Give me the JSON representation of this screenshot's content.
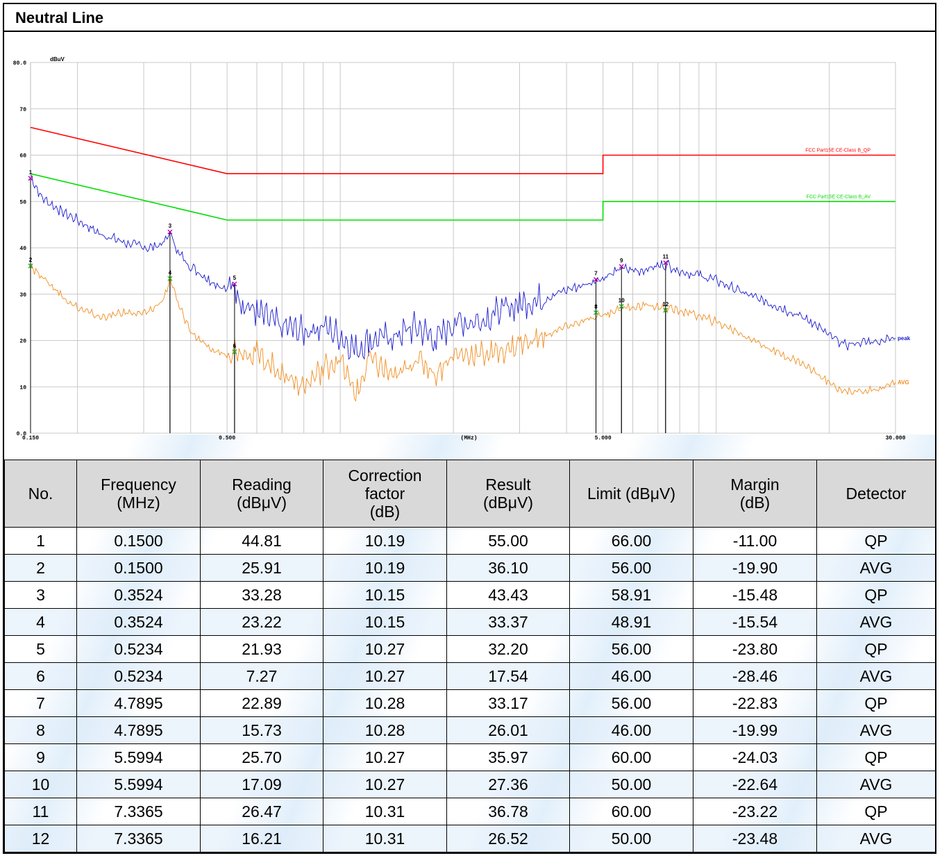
{
  "header": {
    "title": "Neutral Line"
  },
  "colors": {
    "qp_limit": "#ff0000",
    "av_limit": "#00dd00",
    "peak_trace": "#1a1acc",
    "avg_trace": "#f08c1e",
    "grid": "#c8c8c8",
    "qp_marker": "#b000b0",
    "av_marker": "#22aa22"
  },
  "chart_data": {
    "type": "line",
    "ylabel": "dBuV",
    "xlabel": "(MHz)",
    "x_scale": "log",
    "xlim": [
      0.15,
      30
    ],
    "ylim": [
      0,
      80
    ],
    "y_ticks": [
      "80.0",
      "70",
      "60",
      "50",
      "40",
      "30",
      "20",
      "10",
      "0.0"
    ],
    "y_tick_values": [
      80,
      70,
      60,
      50,
      40,
      30,
      20,
      10,
      0
    ],
    "x_tick_labels": [
      "0.150",
      "0.500",
      "5.000",
      "30.000"
    ],
    "x_tick_values": [
      0.15,
      0.5,
      5,
      30
    ],
    "grid": true,
    "limit_lines": [
      {
        "name": "FCC Part15E CE-Class B_QP",
        "points": [
          [
            0.15,
            66
          ],
          [
            0.5,
            56
          ],
          [
            5,
            56
          ],
          [
            5,
            60
          ],
          [
            30,
            60
          ]
        ]
      },
      {
        "name": "FCC Part15E CE-Class B_AV",
        "points": [
          [
            0.15,
            56
          ],
          [
            0.5,
            46
          ],
          [
            5,
            46
          ],
          [
            5,
            50
          ],
          [
            30,
            50
          ]
        ]
      }
    ],
    "series": [
      {
        "name": "peak",
        "points": [
          [
            0.15,
            55.5
          ],
          [
            0.16,
            51
          ],
          [
            0.18,
            48
          ],
          [
            0.2,
            46
          ],
          [
            0.23,
            43
          ],
          [
            0.27,
            41
          ],
          [
            0.31,
            40
          ],
          [
            0.34,
            41
          ],
          [
            0.3524,
            43.4
          ],
          [
            0.37,
            39
          ],
          [
            0.4,
            36
          ],
          [
            0.45,
            33
          ],
          [
            0.5,
            31
          ],
          [
            0.52,
            32
          ],
          [
            0.55,
            28
          ],
          [
            0.6,
            26
          ],
          [
            0.7,
            23
          ],
          [
            0.8,
            22
          ],
          [
            0.9,
            23
          ],
          [
            1.0,
            21
          ],
          [
            1.1,
            18
          ],
          [
            1.2,
            20
          ],
          [
            1.4,
            21
          ],
          [
            1.6,
            23
          ],
          [
            1.8,
            20
          ],
          [
            2.0,
            24
          ],
          [
            2.3,
            24
          ],
          [
            2.6,
            26
          ],
          [
            3.0,
            28
          ],
          [
            3.5,
            29
          ],
          [
            4.0,
            31
          ],
          [
            4.5,
            32
          ],
          [
            4.79,
            33
          ],
          [
            5.2,
            34
          ],
          [
            5.6,
            35.5
          ],
          [
            6.2,
            35
          ],
          [
            7.34,
            36.5
          ],
          [
            8,
            35
          ],
          [
            9,
            34
          ],
          [
            10,
            33
          ],
          [
            12,
            30
          ],
          [
            14,
            28
          ],
          [
            16,
            26
          ],
          [
            18,
            24
          ],
          [
            20,
            21
          ],
          [
            22,
            19
          ],
          [
            24,
            19.5
          ],
          [
            27,
            20
          ],
          [
            30,
            20.5
          ]
        ]
      },
      {
        "name": "AVG",
        "points": [
          [
            0.15,
            36
          ],
          [
            0.16,
            34
          ],
          [
            0.18,
            30
          ],
          [
            0.2,
            27
          ],
          [
            0.23,
            25
          ],
          [
            0.27,
            26
          ],
          [
            0.31,
            26
          ],
          [
            0.34,
            29
          ],
          [
            0.3524,
            33.5
          ],
          [
            0.37,
            28
          ],
          [
            0.4,
            22
          ],
          [
            0.45,
            18
          ],
          [
            0.5,
            17
          ],
          [
            0.52,
            18
          ],
          [
            0.6,
            17
          ],
          [
            0.7,
            13
          ],
          [
            0.8,
            10
          ],
          [
            0.9,
            14
          ],
          [
            1.0,
            16
          ],
          [
            1.1,
            8
          ],
          [
            1.2,
            16
          ],
          [
            1.4,
            12
          ],
          [
            1.6,
            16
          ],
          [
            1.8,
            13
          ],
          [
            2.0,
            17
          ],
          [
            2.5,
            17
          ],
          [
            3.0,
            19
          ],
          [
            3.5,
            21
          ],
          [
            4.0,
            23
          ],
          [
            4.79,
            25
          ],
          [
            5.2,
            26
          ],
          [
            5.6,
            27
          ],
          [
            6.5,
            27.5
          ],
          [
            7.34,
            27
          ],
          [
            8.5,
            26
          ],
          [
            10,
            24
          ],
          [
            12,
            21
          ],
          [
            14,
            18
          ],
          [
            17,
            15
          ],
          [
            20,
            11
          ],
          [
            22,
            9
          ],
          [
            25,
            9
          ],
          [
            28,
            10
          ],
          [
            30,
            11
          ]
        ]
      }
    ],
    "markers": [
      {
        "label": "1",
        "freq": 0.15,
        "value": 55.0,
        "detector": "QP"
      },
      {
        "label": "2",
        "freq": 0.15,
        "value": 36.1,
        "detector": "AVG"
      },
      {
        "label": "3",
        "freq": 0.3524,
        "value": 43.43,
        "detector": "QP"
      },
      {
        "label": "4",
        "freq": 0.3524,
        "value": 33.37,
        "detector": "AVG"
      },
      {
        "label": "5",
        "freq": 0.5234,
        "value": 32.2,
        "detector": "QP"
      },
      {
        "label": "6",
        "freq": 0.5234,
        "value": 17.54,
        "detector": "AVG"
      },
      {
        "label": "7",
        "freq": 4.7895,
        "value": 33.17,
        "detector": "QP"
      },
      {
        "label": "8",
        "freq": 4.7895,
        "value": 26.01,
        "detector": "AVG"
      },
      {
        "label": "9",
        "freq": 5.5994,
        "value": 35.97,
        "detector": "QP"
      },
      {
        "label": "10",
        "freq": 5.5994,
        "value": 27.36,
        "detector": "AVG"
      },
      {
        "label": "11",
        "freq": 7.3365,
        "value": 36.78,
        "detector": "QP"
      },
      {
        "label": "12",
        "freq": 7.3365,
        "value": 26.52,
        "detector": "AVG"
      }
    ],
    "table": {
      "columns": [
        "No.",
        "Frequency\n(MHz)",
        "Reading\n(dBμV)",
        "Correction\nfactor\n(dB)",
        "Result\n(dBμV)",
        "Limit (dBμV)",
        "Margin\n(dB)",
        "Detector"
      ],
      "rows": [
        [
          "1",
          "0.1500",
          "44.81",
          "10.19",
          "55.00",
          "66.00",
          "-11.00",
          "QP"
        ],
        [
          "2",
          "0.1500",
          "25.91",
          "10.19",
          "36.10",
          "56.00",
          "-19.90",
          "AVG"
        ],
        [
          "3",
          "0.3524",
          "33.28",
          "10.15",
          "43.43",
          "58.91",
          "-15.48",
          "QP"
        ],
        [
          "4",
          "0.3524",
          "23.22",
          "10.15",
          "33.37",
          "48.91",
          "-15.54",
          "AVG"
        ],
        [
          "5",
          "0.5234",
          "21.93",
          "10.27",
          "32.20",
          "56.00",
          "-23.80",
          "QP"
        ],
        [
          "6",
          "0.5234",
          "7.27",
          "10.27",
          "17.54",
          "46.00",
          "-28.46",
          "AVG"
        ],
        [
          "7",
          "4.7895",
          "22.89",
          "10.28",
          "33.17",
          "56.00",
          "-22.83",
          "QP"
        ],
        [
          "8",
          "4.7895",
          "15.73",
          "10.28",
          "26.01",
          "46.00",
          "-19.99",
          "AVG"
        ],
        [
          "9",
          "5.5994",
          "25.70",
          "10.27",
          "35.97",
          "60.00",
          "-24.03",
          "QP"
        ],
        [
          "10",
          "5.5994",
          "17.09",
          "10.27",
          "27.36",
          "50.00",
          "-22.64",
          "AVG"
        ],
        [
          "11",
          "7.3365",
          "26.47",
          "10.31",
          "36.78",
          "60.00",
          "-23.22",
          "QP"
        ],
        [
          "12",
          "7.3365",
          "16.21",
          "10.31",
          "26.52",
          "50.00",
          "-23.48",
          "AVG"
        ]
      ]
    }
  }
}
